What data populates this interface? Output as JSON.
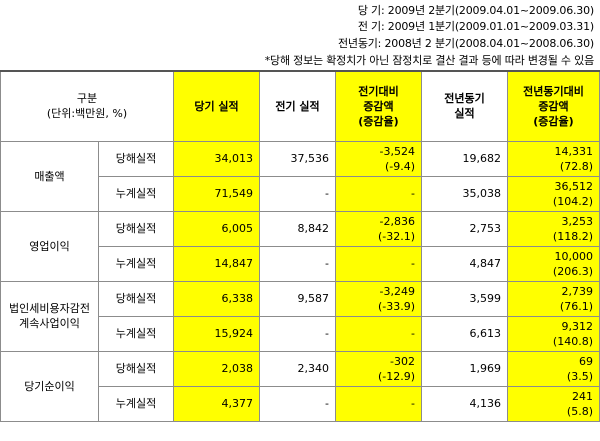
{
  "notes": {
    "current": "당 기: 2009년 2분기(2009.04.01~2009.06.30)",
    "previous": "전 기: 2009년 1분기(2009.01.01~2009.03.31)",
    "prior_year": "전년동기: 2008년 2 분기(2008.04.01~2008.06.30)",
    "disclaimer": "*당해 정보는 확정치가 아닌 잠정치로 결산 결과 등에 따라 변경될 수 있음"
  },
  "headers": {
    "category_line1": "구분",
    "category_line2": "(단위:백만원, %)",
    "current": "당기 실적",
    "previous": "전기 실적",
    "qoq_line1": "전기대비",
    "qoq_line2": "증감액",
    "qoq_line3": "(증감율)",
    "prior_line1": "전년동기",
    "prior_line2": "실적",
    "yoy_line1": "전년동기대비",
    "yoy_line2": "증감액",
    "yoy_line3": "(증감율)"
  },
  "rows": [
    {
      "category": "매출액",
      "quarter": {
        "label": "당해실적",
        "current": "34,013",
        "previous": "37,536",
        "qoq_amt": "-3,524",
        "qoq_rate": "(-9.4)",
        "prior": "19,682",
        "yoy_amt": "14,331",
        "yoy_rate": "(72.8)"
      },
      "cumulative": {
        "label": "누계실적",
        "current": "71,549",
        "previous": "-",
        "qoq": "-",
        "prior": "35,038",
        "yoy_amt": "36,512",
        "yoy_rate": "(104.2)"
      }
    },
    {
      "category": "영업이익",
      "quarter": {
        "label": "당해실적",
        "current": "6,005",
        "previous": "8,842",
        "qoq_amt": "-2,836",
        "qoq_rate": "(-32.1)",
        "prior": "2,753",
        "yoy_amt": "3,253",
        "yoy_rate": "(118.2)"
      },
      "cumulative": {
        "label": "누계실적",
        "current": "14,847",
        "previous": "-",
        "qoq": "-",
        "prior": "4,847",
        "yoy_amt": "10,000",
        "yoy_rate": "(206.3)"
      }
    },
    {
      "category_line1": "법인세비용자감전",
      "category_line2": "계속사업이익",
      "quarter": {
        "label": "당해실적",
        "current": "6,338",
        "previous": "9,587",
        "qoq_amt": "-3,249",
        "qoq_rate": "(-33.9)",
        "prior": "3,599",
        "yoy_amt": "2,739",
        "yoy_rate": "(76.1)"
      },
      "cumulative": {
        "label": "누계실적",
        "current": "15,924",
        "previous": "-",
        "qoq": "-",
        "prior": "6,613",
        "yoy_amt": "9,312",
        "yoy_rate": "(140.8)"
      }
    },
    {
      "category": "당기순이익",
      "quarter": {
        "label": "당해실적",
        "current": "2,038",
        "previous": "2,340",
        "qoq_amt": "-302",
        "qoq_rate": "(-12.9)",
        "prior": "1,969",
        "yoy_amt": "69",
        "yoy_rate": "(3.5)"
      },
      "cumulative": {
        "label": "누계실적",
        "current": "4,377",
        "previous": "-",
        "qoq": "-",
        "prior": "4,136",
        "yoy_amt": "241",
        "yoy_rate": "(5.8)"
      }
    }
  ],
  "colors": {
    "highlight": "#ffff00",
    "border": "#8c8c8c"
  }
}
